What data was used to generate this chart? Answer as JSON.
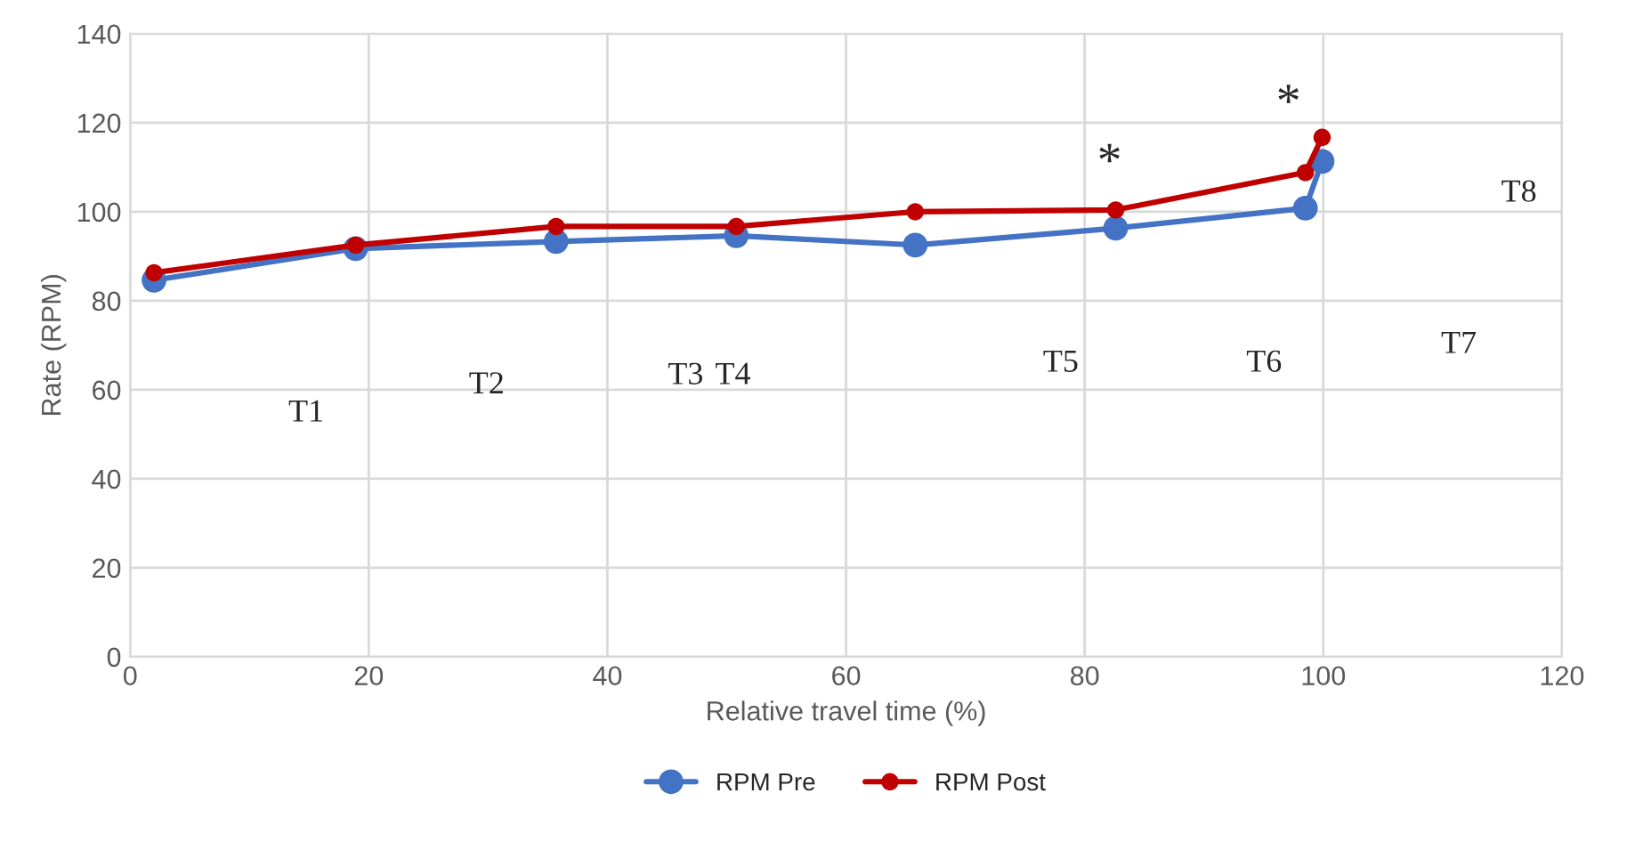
{
  "chart_data": {
    "type": "line",
    "xlabel": "Relative travel time (%)",
    "ylabel": "Rate (RPM)",
    "xlim": [
      0,
      120
    ],
    "xticks": [
      0,
      20,
      40,
      60,
      80,
      100,
      120
    ],
    "ylim": [
      0,
      140
    ],
    "yticks": [
      0,
      20,
      40,
      60,
      80,
      100,
      120,
      140
    ],
    "grid": true,
    "legend": "bottom",
    "marker": "circle",
    "line_style": "solid",
    "series": [
      {
        "name": "RPM Pre",
        "color": "#4472c4",
        "x": [
          2.0,
          18.9,
          35.7,
          50.8,
          65.8,
          82.6,
          98.5,
          99.9
        ],
        "values": [
          84.6,
          91.7,
          93.3,
          94.6,
          92.5,
          96.3,
          100.8,
          111.3
        ]
      },
      {
        "name": "RPM Post",
        "color": "#c00000",
        "x": [
          2.0,
          18.9,
          35.7,
          50.8,
          65.8,
          82.6,
          98.5,
          99.9
        ],
        "values": [
          86.3,
          92.5,
          96.7,
          96.7,
          100.0,
          100.4,
          108.8,
          116.7
        ]
      }
    ],
    "annotations": [
      "T1",
      "T2",
      "T3",
      "T4",
      "T5",
      "T6",
      "T7",
      "T8",
      "*",
      "*"
    ]
  }
}
